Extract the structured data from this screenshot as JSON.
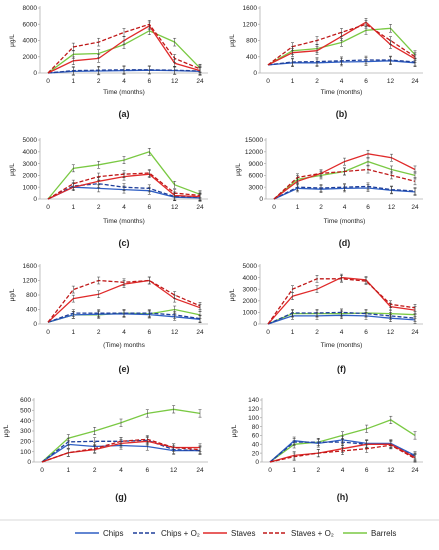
{
  "colors": {
    "Chips": "#2f5fc4",
    "ChipsO2": "#1f3f9a",
    "Staves": "#e02a2a",
    "StavesO2": "#c01818",
    "Barrels": "#7ac943",
    "axis": "#b0b0b0",
    "error": "#333333"
  },
  "legend": [
    {
      "name": "Chips",
      "label": "Chips",
      "color": "#2f5fc4",
      "dash": false
    },
    {
      "name": "Chips + O2",
      "label": "Chips + O₂",
      "color": "#1f3f9a",
      "dash": true
    },
    {
      "name": "Staves",
      "label": "Staves",
      "color": "#e02a2a",
      "dash": false
    },
    {
      "name": "Staves + O2",
      "label": "Staves + O₂",
      "color": "#c01818",
      "dash": true
    },
    {
      "name": "Barrels",
      "label": "Barrels",
      "color": "#7ac943",
      "dash": false
    }
  ],
  "chart_data": [
    {
      "type": "line",
      "panel": "(a)",
      "ylabel": "μg/L",
      "xlabel": "Time (months)",
      "categories": [
        "0",
        "1",
        "2",
        "4",
        "6",
        "12",
        "24"
      ],
      "ylim": [
        0,
        8000
      ],
      "yticks": [
        0,
        2000,
        4000,
        6000,
        8000
      ],
      "series": [
        {
          "name": "Chips",
          "values": [
            0,
            200,
            250,
            300,
            350,
            300,
            200
          ]
        },
        {
          "name": "Chips + O2",
          "values": [
            0,
            300,
            350,
            400,
            400,
            350,
            250
          ]
        },
        {
          "name": "Staves",
          "values": [
            0,
            1500,
            1800,
            4000,
            5800,
            1200,
            300
          ]
        },
        {
          "name": "Staves + O2",
          "values": [
            0,
            3200,
            3800,
            5000,
            6000,
            1800,
            500
          ]
        },
        {
          "name": "Barrels",
          "values": [
            0,
            2300,
            2400,
            3500,
            5200,
            3800,
            600
          ]
        }
      ]
    },
    {
      "type": "line",
      "panel": "(b)",
      "ylabel": "μg/L",
      "xlabel": "Time (months)",
      "categories": [
        "0",
        "1",
        "2",
        "4",
        "6",
        "12",
        "24"
      ],
      "ylim": [
        0,
        1600
      ],
      "yticks": [
        0,
        400,
        800,
        1200,
        1600
      ],
      "series": [
        {
          "name": "Chips",
          "values": [
            200,
            250,
            250,
            270,
            280,
            300,
            250
          ]
        },
        {
          "name": "Chips + O2",
          "values": [
            200,
            270,
            280,
            300,
            320,
            320,
            270
          ]
        },
        {
          "name": "Staves",
          "values": [
            200,
            500,
            550,
            900,
            1250,
            700,
            350
          ]
        },
        {
          "name": "Staves + O2",
          "values": [
            200,
            650,
            800,
            1000,
            1200,
            800,
            400
          ]
        },
        {
          "name": "Barrels",
          "values": [
            200,
            550,
            600,
            750,
            1050,
            1100,
            450
          ]
        }
      ]
    },
    {
      "type": "line",
      "panel": "(c)",
      "ylabel": "μg/L",
      "xlabel": "Time (months)",
      "categories": [
        "0",
        "1",
        "2",
        "4",
        "6",
        "12",
        "24"
      ],
      "ylim": [
        0,
        5000
      ],
      "yticks": [
        0,
        1000,
        2000,
        3000,
        4000,
        5000
      ],
      "series": [
        {
          "name": "Chips",
          "values": [
            0,
            1000,
            900,
            800,
            700,
            150,
            100
          ]
        },
        {
          "name": "Chips + O2",
          "values": [
            0,
            1100,
            1300,
            1000,
            900,
            200,
            150
          ]
        },
        {
          "name": "Staves",
          "values": [
            0,
            1000,
            1500,
            1900,
            2100,
            300,
            200
          ]
        },
        {
          "name": "Staves + O2",
          "values": [
            0,
            1300,
            1900,
            2100,
            2200,
            500,
            300
          ]
        },
        {
          "name": "Barrels",
          "values": [
            0,
            2600,
            2900,
            3300,
            4000,
            1200,
            400
          ]
        }
      ]
    },
    {
      "type": "line",
      "panel": "(d)",
      "ylabel": "μg/L",
      "xlabel": "Time (months)",
      "categories": [
        "0",
        "1",
        "2",
        "4",
        "6",
        "12",
        "24"
      ],
      "ylim": [
        0,
        15000
      ],
      "yticks": [
        0,
        3000,
        6000,
        9000,
        12000,
        15000
      ],
      "series": [
        {
          "name": "Chips",
          "values": [
            0,
            2700,
            2500,
            2700,
            2800,
            2200,
            1800
          ]
        },
        {
          "name": "Chips + O2",
          "values": [
            0,
            3000,
            2800,
            3000,
            3200,
            2400,
            2000
          ]
        },
        {
          "name": "Staves",
          "values": [
            0,
            4500,
            6500,
            9500,
            11500,
            10500,
            7500
          ]
        },
        {
          "name": "Staves + O2",
          "values": [
            0,
            5500,
            6500,
            7000,
            7500,
            6000,
            4500
          ]
        },
        {
          "name": "Barrels",
          "values": [
            0,
            5000,
            6000,
            7000,
            9500,
            7500,
            6000
          ]
        }
      ]
    },
    {
      "type": "line",
      "panel": "(e)",
      "ylabel": "μg/L",
      "xlabel": "(Time) months",
      "categories": [
        "0",
        "1",
        "2",
        "4",
        "6",
        "12",
        "24"
      ],
      "ylim": [
        0,
        1600
      ],
      "yticks": [
        0,
        400,
        800,
        1200,
        1600
      ],
      "series": [
        {
          "name": "Chips",
          "values": [
            50,
            250,
            270,
            280,
            260,
            200,
            130
          ]
        },
        {
          "name": "Chips + O2",
          "values": [
            50,
            300,
            300,
            300,
            300,
            250,
            150
          ]
        },
        {
          "name": "Staves",
          "values": [
            50,
            700,
            820,
            1100,
            1200,
            700,
            450
          ]
        },
        {
          "name": "Staves + O2",
          "values": [
            50,
            950,
            1200,
            1150,
            1200,
            800,
            500
          ]
        },
        {
          "name": "Barrels",
          "values": [
            50,
            250,
            250,
            300,
            280,
            400,
            250
          ]
        }
      ]
    },
    {
      "type": "line",
      "panel": "(f)",
      "ylabel": "μg/L",
      "xlabel": "Time (months)",
      "categories": [
        "0",
        "1",
        "2",
        "4",
        "6",
        "12",
        "24"
      ],
      "ylim": [
        0,
        5000
      ],
      "yticks": [
        0,
        1000,
        2000,
        3000,
        4000,
        5000
      ],
      "series": [
        {
          "name": "Chips",
          "values": [
            0,
            700,
            700,
            750,
            700,
            500,
            350
          ]
        },
        {
          "name": "Chips + O2",
          "values": [
            0,
            950,
            950,
            1000,
            900,
            700,
            500
          ]
        },
        {
          "name": "Staves",
          "values": [
            0,
            2400,
            3000,
            4000,
            3800,
            1500,
            1200
          ]
        },
        {
          "name": "Staves + O2",
          "values": [
            0,
            3000,
            3900,
            3900,
            3700,
            1700,
            1400
          ]
        },
        {
          "name": "Barrels",
          "values": [
            0,
            900,
            900,
            900,
            950,
            900,
            800
          ]
        }
      ]
    },
    {
      "type": "line",
      "panel": "(g)",
      "ylabel": "μg/L",
      "xlabel": "",
      "categories": [
        "0",
        "1",
        "2",
        "4",
        "6",
        "12",
        "24"
      ],
      "ylim": [
        0,
        600
      ],
      "yticks": [
        0,
        100,
        200,
        300,
        400,
        500,
        600
      ],
      "series": [
        {
          "name": "Chips",
          "values": [
            0,
            170,
            150,
            160,
            150,
            110,
            110
          ]
        },
        {
          "name": "Chips + O2",
          "values": [
            0,
            195,
            200,
            200,
            210,
            120,
            110
          ]
        },
        {
          "name": "Staves",
          "values": [
            0,
            90,
            120,
            180,
            200,
            140,
            140
          ]
        },
        {
          "name": "Staves + O2",
          "values": [
            0,
            90,
            130,
            200,
            220,
            140,
            120
          ]
        },
        {
          "name": "Barrels",
          "values": [
            0,
            230,
            300,
            380,
            470,
            510,
            470
          ]
        }
      ]
    },
    {
      "type": "line",
      "panel": "(h)",
      "ylabel": "μg/L",
      "xlabel": "",
      "categories": [
        "0",
        "1",
        "2",
        "4",
        "6",
        "12",
        "24"
      ],
      "ylim": [
        0,
        140
      ],
      "yticks": [
        0,
        20,
        40,
        60,
        80,
        100,
        120,
        140
      ],
      "series": [
        {
          "name": "Chips",
          "values": [
            0,
            48,
            42,
            50,
            42,
            42,
            15
          ]
        },
        {
          "name": "Chips + O2",
          "values": [
            0,
            45,
            45,
            45,
            40,
            40,
            12
          ]
        },
        {
          "name": "Staves",
          "values": [
            0,
            15,
            20,
            30,
            40,
            40,
            10
          ]
        },
        {
          "name": "Staves + O2",
          "values": [
            0,
            12,
            20,
            25,
            30,
            38,
            8
          ]
        },
        {
          "name": "Barrels",
          "values": [
            0,
            40,
            45,
            60,
            75,
            95,
            60
          ]
        }
      ]
    }
  ]
}
